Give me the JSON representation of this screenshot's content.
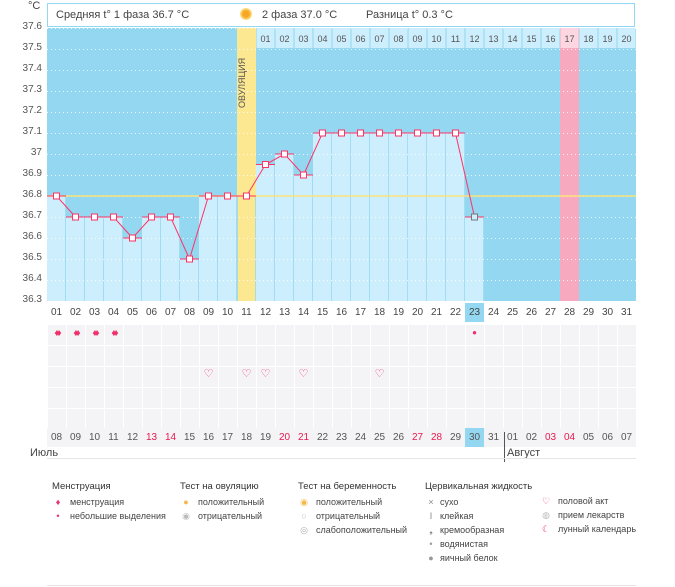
{
  "unit": "°C",
  "header": {
    "phase1": "Средняя t° 1 фаза 36.7 °C",
    "phase2": "2 фаза 37.0 °C",
    "diff": "Разница t° 0.3 °C",
    "ovulation_icon": "sun-icon"
  },
  "ovulation_label": "ОВУЛЯЦИЯ",
  "colors": {
    "bg": "#93d7f1",
    "bar": "#cdeefc",
    "line": "#ff3366",
    "ovulation": "#fbe891",
    "period_expected": "#f7a9c0",
    "coverline": "#f8e27a"
  },
  "chart_data": {
    "type": "line",
    "ylim": [
      36.3,
      37.6
    ],
    "yticks": [
      "37.6",
      "37.5",
      "37.4",
      "37.3",
      "37.2",
      "37.1",
      "37",
      "36.9",
      "36.8",
      "36.7",
      "36.6",
      "36.5",
      "36.4",
      "36.3"
    ],
    "cycle_days": [
      "01",
      "02",
      "03",
      "04",
      "05",
      "06",
      "07",
      "08",
      "09",
      "10",
      "11",
      "12",
      "13",
      "14",
      "15",
      "16",
      "17",
      "18",
      "19",
      "20",
      "21",
      "22",
      "23",
      "24",
      "25",
      "26",
      "27",
      "28",
      "29",
      "30",
      "31"
    ],
    "temperatures": [
      36.8,
      36.7,
      36.7,
      36.7,
      36.6,
      36.7,
      36.7,
      36.5,
      36.8,
      36.8,
      36.8,
      36.95,
      37.0,
      36.9,
      37.1,
      37.1,
      37.1,
      37.1,
      37.1,
      37.1,
      37.1,
      37.1,
      36.7
    ],
    "coverline": 36.8,
    "ovulation_day": 11,
    "expected_period_day": 28,
    "today_day": 23,
    "phase2_days": [
      "01",
      "02",
      "03",
      "04",
      "05",
      "06",
      "07",
      "08",
      "09",
      "10",
      "11",
      "12",
      "13",
      "14",
      "15",
      "16",
      "17",
      "18",
      "19",
      "20"
    ]
  },
  "menstruation_days": [
    1,
    2,
    3,
    4
  ],
  "spotting_days": [
    23
  ],
  "intercourse_days": [
    9,
    11,
    12,
    14,
    18
  ],
  "dates": [
    "08",
    "09",
    "10",
    "11",
    "12",
    "13",
    "14",
    "15",
    "16",
    "17",
    "18",
    "19",
    "20",
    "21",
    "22",
    "23",
    "24",
    "25",
    "26",
    "27",
    "28",
    "29",
    "30",
    "31",
    "01",
    "02",
    "03",
    "04",
    "05",
    "06",
    "07"
  ],
  "weekend_indexes": [
    5,
    6,
    12,
    13,
    19,
    20,
    26,
    27
  ],
  "months": {
    "first": "Июль",
    "second": "Август"
  },
  "legend": [
    {
      "title": "Менструация",
      "items": [
        {
          "icon": "drops-icon",
          "label": "менструация"
        },
        {
          "icon": "small-drop-icon",
          "label": "небольшие выделения"
        }
      ]
    },
    {
      "title": "Тест на овуляцию",
      "items": [
        {
          "icon": "ovulation-positive-icon",
          "label": "положительный"
        },
        {
          "icon": "ovulation-negative-icon",
          "label": "отрицательный"
        }
      ]
    },
    {
      "title": "Тест на беременность",
      "items": [
        {
          "icon": "pregnancy-positive-icon",
          "label": "положительный"
        },
        {
          "icon": "pregnancy-negative-icon",
          "label": "отрицательный"
        },
        {
          "icon": "pregnancy-weak-icon",
          "label": "слабоположительный"
        }
      ]
    },
    {
      "title": "Цервикальная жидкость",
      "items": [
        {
          "icon": "cross-icon",
          "label": "сухо"
        },
        {
          "icon": "sticky-icon",
          "label": "клейкая"
        },
        {
          "icon": "creamy-icon",
          "label": "кремообразная"
        },
        {
          "icon": "watery-icon",
          "label": "водянистая"
        },
        {
          "icon": "egg-white-icon",
          "label": "яичный белок"
        }
      ]
    },
    {
      "title": "",
      "items": [
        {
          "icon": "heart-icon",
          "label": "половой акт"
        },
        {
          "icon": "pill-icon",
          "label": "прием лекарств"
        },
        {
          "icon": "moon-icon",
          "label": "лунный календарь"
        }
      ]
    }
  ]
}
